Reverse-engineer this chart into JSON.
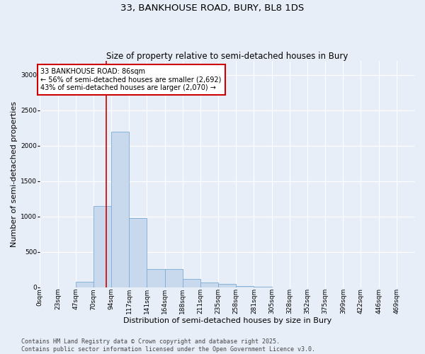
{
  "title": "33, BANKHOUSE ROAD, BURY, BL8 1DS",
  "subtitle": "Size of property relative to semi-detached houses in Bury",
  "xlabel": "Distribution of semi-detached houses by size in Bury",
  "ylabel": "Number of semi-detached properties",
  "bin_labels": [
    "0sqm",
    "23sqm",
    "47sqm",
    "70sqm",
    "94sqm",
    "117sqm",
    "141sqm",
    "164sqm",
    "188sqm",
    "211sqm",
    "235sqm",
    "258sqm",
    "281sqm",
    "305sqm",
    "328sqm",
    "352sqm",
    "375sqm",
    "399sqm",
    "422sqm",
    "446sqm",
    "469sqm"
  ],
  "bar_values": [
    0,
    0,
    75,
    1150,
    2200,
    975,
    260,
    260,
    120,
    70,
    50,
    20,
    5,
    0,
    0,
    0,
    0,
    0,
    0,
    0,
    0
  ],
  "bar_color": "#c8d9ee",
  "bar_edge_color": "#7aacd6",
  "property_line_x": 86,
  "property_line_color": "#cc0000",
  "annotation_text": "33 BANKHOUSE ROAD: 86sqm\n← 56% of semi-detached houses are smaller (2,692)\n43% of semi-detached houses are larger (2,070) →",
  "annotation_box_color": "#ffffff",
  "annotation_box_edge_color": "#cc0000",
  "ylim": [
    0,
    3200
  ],
  "yticks": [
    0,
    500,
    1000,
    1500,
    2000,
    2500,
    3000
  ],
  "footer_line1": "Contains HM Land Registry data © Crown copyright and database right 2025.",
  "footer_line2": "Contains public sector information licensed under the Open Government Licence v3.0.",
  "background_color": "#e8eef8",
  "plot_bg_color": "#e8eef8",
  "grid_color": "#ffffff",
  "title_fontsize": 9.5,
  "subtitle_fontsize": 8.5,
  "axis_label_fontsize": 8,
  "tick_fontsize": 6.5,
  "annotation_fontsize": 7,
  "footer_fontsize": 6
}
